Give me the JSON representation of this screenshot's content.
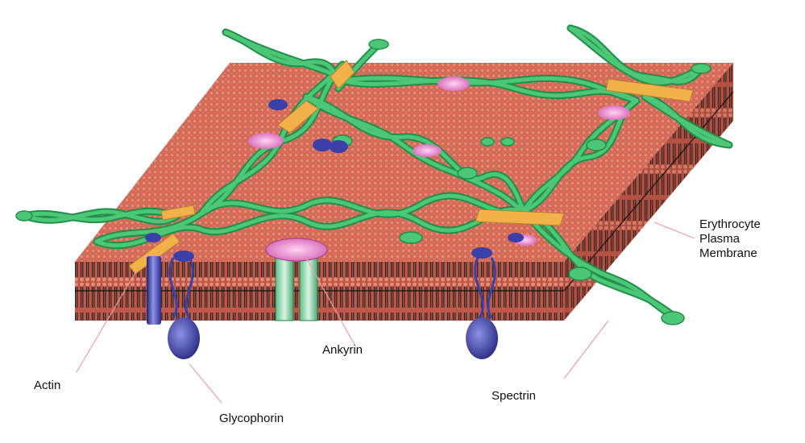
{
  "labels": {
    "membrane": [
      "Erythrocyte",
      "Plasma",
      "Membrane"
    ],
    "ankyrin": "Ankyrin",
    "actin": "Actin",
    "spectrin": "Spectrin",
    "glycophorin": "Glycophorin"
  },
  "colors": {
    "membrane_top": "#d9705d",
    "membrane_dot": "#c4503f",
    "membrane_front": "#b54a3a",
    "membrane_side": "#b04535",
    "spectrin": "#4cc776",
    "spectrin_outline": "#1f8f4a",
    "actin": "#f2b24a",
    "ankyrin": "#e87ec8",
    "glycophorin": "#3b3fa8",
    "pointer_line": "#e8a0a0"
  }
}
